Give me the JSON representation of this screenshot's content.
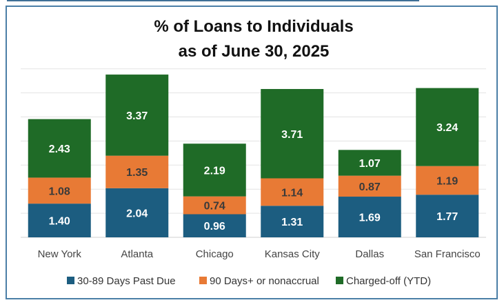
{
  "chart_data": {
    "type": "bar",
    "stacked": true,
    "title": "% of Loans to Individuals",
    "subtitle": "as of June 30, 2025",
    "categories": [
      "New York",
      "Atlanta",
      "Chicago",
      "Kansas City",
      "Dallas",
      "San Francisco"
    ],
    "series": [
      {
        "name": "30-89 Days Past Due",
        "color": "#1c5d80",
        "values": [
          1.4,
          2.04,
          0.96,
          1.31,
          1.69,
          1.77
        ]
      },
      {
        "name": "90 Days+ or nonaccrual",
        "color": "#e87a35",
        "values": [
          1.08,
          1.35,
          0.74,
          1.14,
          0.87,
          1.19
        ]
      },
      {
        "name": "Charged-off (YTD)",
        "color": "#1f6b27",
        "values": [
          2.43,
          3.37,
          2.19,
          3.71,
          1.07,
          3.24
        ]
      }
    ],
    "ylim": [
      0,
      7
    ],
    "grid": true,
    "legend": "bottom",
    "label_color": "#ffffff",
    "label_color_alt": "#3a3a3a"
  }
}
